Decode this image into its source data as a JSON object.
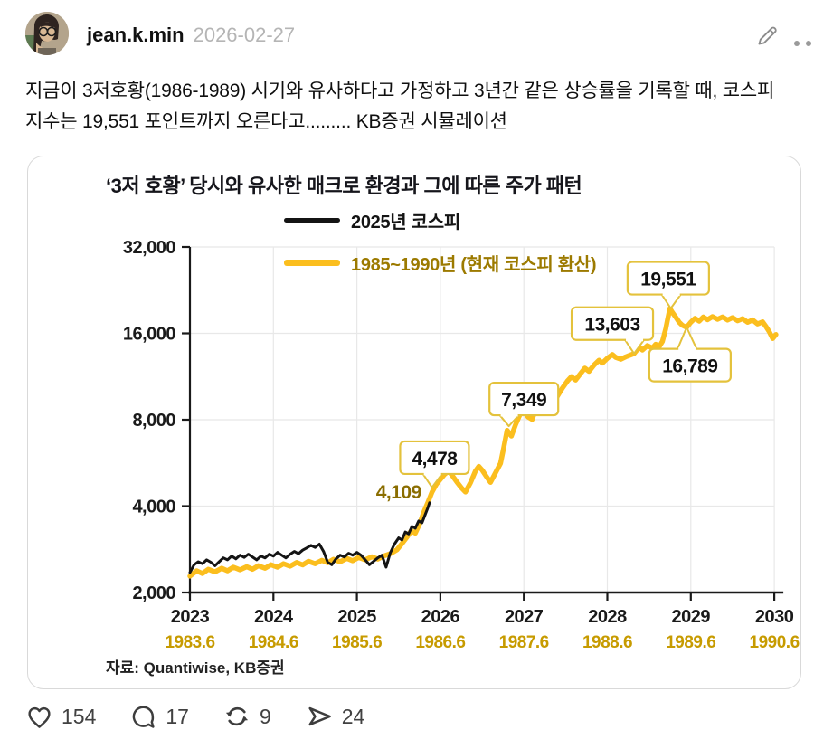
{
  "header": {
    "username": "jean.k.min",
    "date": "2026-02-27"
  },
  "post_text": "지금이 3저호황(1986-1989) 시기와 유사하다고 가정하고 3년간 같은 상승률을 기록할 때, 코스피 지수는 19,551 포인트까지 오른다고......... KB증권 시뮬레이션",
  "chart_data": {
    "type": "line",
    "title": "‘3저 호황’ 당시와 유사한 매크로 환경과 그에 따른 주가 패턴",
    "source": "자료: Quantiwise, KB증권",
    "grid": true,
    "legend_position": "top-center",
    "y_axis": {
      "scale": "log2",
      "ylim": [
        2000,
        32000
      ],
      "ticks": [
        32000,
        16000,
        8000,
        4000,
        2000
      ],
      "tick_labels": [
        "32,000",
        "16,000",
        "8,000",
        "4,000",
        "2,000"
      ]
    },
    "x_axis": {
      "xlim": [
        2023,
        2030
      ],
      "ticks_primary": [
        "2023",
        "2024",
        "2025",
        "2026",
        "2027",
        "2028",
        "2029",
        "2030"
      ],
      "ticks_secondary": [
        "1983.6",
        "1984.6",
        "1985.6",
        "1986.6",
        "1987.6",
        "1988.6",
        "1989.6",
        "1990.6"
      ]
    },
    "colors": {
      "grid": "#e8e8e8",
      "axis": "#1a1a1a",
      "annotation_border": "#e4c23c",
      "secondary_axis_text": "#c79b00",
      "annotation_text_gold": "#8a6d00"
    },
    "series": [
      {
        "name": "1985~1990년 (현재 코스피 환산)",
        "color": "#fbbe1e",
        "label_color": "#9c7a00",
        "width": 5.5,
        "points": [
          [
            2023.0,
            2280
          ],
          [
            2023.08,
            2380
          ],
          [
            2023.15,
            2330
          ],
          [
            2023.22,
            2410
          ],
          [
            2023.3,
            2360
          ],
          [
            2023.38,
            2430
          ],
          [
            2023.45,
            2380
          ],
          [
            2023.52,
            2450
          ],
          [
            2023.6,
            2400
          ],
          [
            2023.68,
            2460
          ],
          [
            2023.75,
            2410
          ],
          [
            2023.82,
            2480
          ],
          [
            2023.9,
            2430
          ],
          [
            2023.97,
            2500
          ],
          [
            2024.05,
            2450
          ],
          [
            2024.12,
            2520
          ],
          [
            2024.2,
            2470
          ],
          [
            2024.28,
            2545
          ],
          [
            2024.35,
            2495
          ],
          [
            2024.42,
            2570
          ],
          [
            2024.5,
            2520
          ],
          [
            2024.58,
            2590
          ],
          [
            2024.65,
            2540
          ],
          [
            2024.72,
            2610
          ],
          [
            2024.8,
            2560
          ],
          [
            2024.88,
            2630
          ],
          [
            2024.95,
            2580
          ],
          [
            2025.02,
            2650
          ],
          [
            2025.1,
            2600
          ],
          [
            2025.18,
            2665
          ],
          [
            2025.25,
            2615
          ],
          [
            2025.32,
            2680
          ],
          [
            2025.4,
            2730
          ],
          [
            2025.48,
            2820
          ],
          [
            2025.54,
            2960
          ],
          [
            2025.6,
            3120
          ],
          [
            2025.65,
            3280
          ],
          [
            2025.7,
            3220
          ],
          [
            2025.75,
            3460
          ],
          [
            2025.8,
            3800
          ],
          [
            2025.85,
            4120
          ],
          [
            2025.9,
            4478
          ],
          [
            2025.95,
            4760
          ],
          [
            2026.0,
            4960
          ],
          [
            2026.05,
            5160
          ],
          [
            2026.1,
            5300
          ],
          [
            2026.15,
            5080
          ],
          [
            2026.2,
            4840
          ],
          [
            2026.25,
            4640
          ],
          [
            2026.3,
            4480
          ],
          [
            2026.36,
            4820
          ],
          [
            2026.42,
            5300
          ],
          [
            2026.46,
            5500
          ],
          [
            2026.5,
            5340
          ],
          [
            2026.55,
            5080
          ],
          [
            2026.6,
            4840
          ],
          [
            2026.66,
            5220
          ],
          [
            2026.72,
            5640
          ],
          [
            2026.76,
            6400
          ],
          [
            2026.8,
            7349
          ],
          [
            2026.85,
            7020
          ],
          [
            2026.9,
            7680
          ],
          [
            2026.95,
            8300
          ],
          [
            2027.0,
            8700
          ],
          [
            2027.05,
            8180
          ],
          [
            2027.1,
            8020
          ],
          [
            2027.16,
            9040
          ],
          [
            2027.22,
            9800
          ],
          [
            2027.26,
            10120
          ],
          [
            2027.3,
            9700
          ],
          [
            2027.35,
            9420
          ],
          [
            2027.4,
            9640
          ],
          [
            2027.46,
            10300
          ],
          [
            2027.52,
            10900
          ],
          [
            2027.57,
            11300
          ],
          [
            2027.62,
            11000
          ],
          [
            2027.68,
            11600
          ],
          [
            2027.73,
            12100
          ],
          [
            2027.78,
            11800
          ],
          [
            2027.84,
            12400
          ],
          [
            2027.9,
            12900
          ],
          [
            2027.94,
            12600
          ],
          [
            2028.0,
            13100
          ],
          [
            2028.06,
            13500
          ],
          [
            2028.1,
            13200
          ],
          [
            2028.16,
            13000
          ],
          [
            2028.22,
            13250
          ],
          [
            2028.27,
            13420
          ],
          [
            2028.32,
            13603
          ],
          [
            2028.38,
            14300
          ],
          [
            2028.42,
            14000
          ],
          [
            2028.48,
            14500
          ],
          [
            2028.54,
            14200
          ],
          [
            2028.58,
            14650
          ],
          [
            2028.62,
            14350
          ],
          [
            2028.66,
            15000
          ],
          [
            2028.7,
            16600
          ],
          [
            2028.72,
            17800
          ],
          [
            2028.75,
            19551
          ],
          [
            2028.78,
            18900
          ],
          [
            2028.82,
            18200
          ],
          [
            2028.86,
            17500
          ],
          [
            2028.9,
            17050
          ],
          [
            2028.95,
            16789
          ],
          [
            2029.0,
            17500
          ],
          [
            2029.05,
            18050
          ],
          [
            2029.1,
            17650
          ],
          [
            2029.15,
            18250
          ],
          [
            2029.2,
            17850
          ],
          [
            2029.26,
            18300
          ],
          [
            2029.32,
            17900
          ],
          [
            2029.38,
            18250
          ],
          [
            2029.44,
            17800
          ],
          [
            2029.5,
            18150
          ],
          [
            2029.56,
            17700
          ],
          [
            2029.62,
            18000
          ],
          [
            2029.68,
            17500
          ],
          [
            2029.74,
            17820
          ],
          [
            2029.8,
            17250
          ],
          [
            2029.86,
            17550
          ],
          [
            2029.9,
            16900
          ],
          [
            2029.94,
            16200
          ],
          [
            2029.98,
            15350
          ],
          [
            2030.02,
            15850
          ]
        ]
      },
      {
        "name": "2025년 코스피",
        "color": "#141414",
        "label_color": "#141414",
        "width": 3,
        "points": [
          [
            2023.0,
            2350
          ],
          [
            2023.05,
            2500
          ],
          [
            2023.1,
            2560
          ],
          [
            2023.15,
            2520
          ],
          [
            2023.2,
            2600
          ],
          [
            2023.25,
            2550
          ],
          [
            2023.3,
            2480
          ],
          [
            2023.35,
            2560
          ],
          [
            2023.4,
            2640
          ],
          [
            2023.45,
            2600
          ],
          [
            2023.5,
            2680
          ],
          [
            2023.55,
            2620
          ],
          [
            2023.6,
            2700
          ],
          [
            2023.65,
            2650
          ],
          [
            2023.7,
            2720
          ],
          [
            2023.75,
            2660
          ],
          [
            2023.8,
            2600
          ],
          [
            2023.85,
            2680
          ],
          [
            2023.9,
            2640
          ],
          [
            2023.95,
            2720
          ],
          [
            2024.0,
            2680
          ],
          [
            2024.05,
            2760
          ],
          [
            2024.1,
            2700
          ],
          [
            2024.15,
            2640
          ],
          [
            2024.2,
            2720
          ],
          [
            2024.25,
            2780
          ],
          [
            2024.3,
            2730
          ],
          [
            2024.35,
            2810
          ],
          [
            2024.4,
            2860
          ],
          [
            2024.45,
            2920
          ],
          [
            2024.5,
            2870
          ],
          [
            2024.55,
            2950
          ],
          [
            2024.6,
            2780
          ],
          [
            2024.65,
            2550
          ],
          [
            2024.7,
            2500
          ],
          [
            2024.75,
            2620
          ],
          [
            2024.8,
            2700
          ],
          [
            2024.85,
            2660
          ],
          [
            2024.9,
            2740
          ],
          [
            2024.95,
            2700
          ],
          [
            2025.0,
            2760
          ],
          [
            2025.05,
            2700
          ],
          [
            2025.1,
            2600
          ],
          [
            2025.15,
            2500
          ],
          [
            2025.2,
            2570
          ],
          [
            2025.25,
            2640
          ],
          [
            2025.3,
            2700
          ],
          [
            2025.35,
            2450
          ],
          [
            2025.4,
            2750
          ],
          [
            2025.45,
            2950
          ],
          [
            2025.5,
            3100
          ],
          [
            2025.54,
            3050
          ],
          [
            2025.58,
            3250
          ],
          [
            2025.62,
            3200
          ],
          [
            2025.66,
            3400
          ],
          [
            2025.7,
            3350
          ],
          [
            2025.74,
            3550
          ],
          [
            2025.78,
            3500
          ],
          [
            2025.82,
            3750
          ],
          [
            2025.85,
            3950
          ],
          [
            2025.87,
            4109
          ]
        ]
      }
    ],
    "annotations": [
      {
        "label": "4,109",
        "style": "text",
        "x": 2025.5,
        "value": 4480
      },
      {
        "label": "4,478",
        "style": "box",
        "box_x": 2025.93,
        "box_value": 5900,
        "tip_x": 2025.9,
        "tip_value": 4650
      },
      {
        "label": "7,349",
        "style": "box",
        "box_x": 2027.0,
        "box_value": 9450,
        "tip_x": 2026.82,
        "tip_value": 7600
      },
      {
        "label": "13,603",
        "style": "box",
        "box_x": 2028.06,
        "box_value": 17300,
        "tip_x": 2028.32,
        "tip_value": 13603
      },
      {
        "label": "19,551",
        "style": "box",
        "box_x": 2028.73,
        "box_value": 24900,
        "tip_x": 2028.76,
        "tip_value": 19551
      },
      {
        "label": "16,789",
        "style": "box",
        "box_x": 2028.99,
        "box_value": 12400,
        "tip_x": 2028.95,
        "tip_value": 16789
      }
    ]
  },
  "footer": {
    "actions": [
      {
        "name": "like",
        "icon": "heart-icon",
        "count": "154"
      },
      {
        "name": "comment",
        "icon": "comment-icon",
        "count": "17"
      },
      {
        "name": "repost",
        "icon": "repost-icon",
        "count": "9"
      },
      {
        "name": "share",
        "icon": "share-icon",
        "count": "24"
      }
    ]
  }
}
